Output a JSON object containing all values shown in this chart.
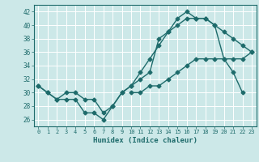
{
  "title": "",
  "xlabel": "Humidex (Indice chaleur)",
  "xlim": [
    -0.5,
    23.5
  ],
  "ylim": [
    25,
    43
  ],
  "yticks": [
    26,
    28,
    30,
    32,
    34,
    36,
    38,
    40,
    42
  ],
  "xticks": [
    0,
    1,
    2,
    3,
    4,
    5,
    6,
    7,
    8,
    9,
    10,
    11,
    12,
    13,
    14,
    15,
    16,
    17,
    18,
    19,
    20,
    21,
    22,
    23
  ],
  "bg_color": "#cce8e8",
  "line_color": "#1e6b6b",
  "grid_color": "#ffffff",
  "line1_y": [
    31,
    30,
    29,
    29,
    29,
    27,
    27,
    26,
    28,
    30,
    31,
    32,
    33,
    38,
    39,
    41,
    42,
    41,
    41,
    40,
    39,
    38,
    37,
    36
  ],
  "line2_y": [
    31,
    30,
    29,
    30,
    30,
    29,
    29,
    27,
    28,
    30,
    31,
    33,
    35,
    37,
    39,
    40,
    41,
    41,
    41,
    40,
    35,
    33,
    30,
    null
  ],
  "line3_y": [
    null,
    null,
    null,
    null,
    null,
    null,
    null,
    null,
    null,
    null,
    30,
    30,
    31,
    31,
    32,
    33,
    34,
    35,
    35,
    35,
    35,
    35,
    35,
    36
  ]
}
